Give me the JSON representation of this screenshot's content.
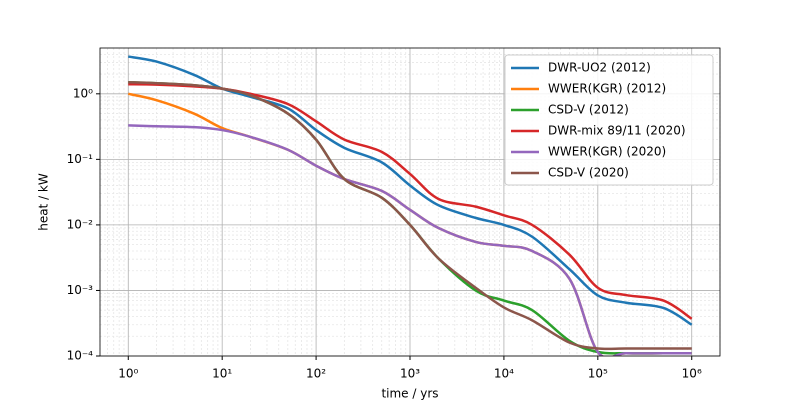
{
  "chart_data": {
    "type": "line",
    "xlabel": "time / yrs",
    "ylabel": "heat / kW",
    "x": [
      1,
      2,
      5,
      10,
      20,
      50,
      100,
      200,
      500,
      1000,
      2000,
      5000,
      10000,
      20000,
      50000,
      100000,
      200000,
      500000,
      1000000
    ],
    "series": [
      {
        "name": "DWR-UO2 (2012)",
        "color": "#1f77b4",
        "values": [
          3.7,
          3.1,
          1.95,
          1.2,
          0.9,
          0.6,
          0.28,
          0.15,
          0.09,
          0.04,
          0.02,
          0.0128,
          0.01,
          0.0066,
          0.0021,
          0.00084,
          0.00065,
          0.00054,
          0.0003
        ]
      },
      {
        "name": "WWER(KGR) (2012)",
        "color": "#ff7f0e",
        "values": [
          1.0,
          0.8,
          0.5,
          0.3,
          0.22,
          0.14,
          0.08,
          0.05,
          0.033,
          0.017,
          0.009,
          0.0055,
          0.0048,
          0.004,
          0.0015,
          0.000115,
          0.00011,
          0.00011,
          0.00011
        ]
      },
      {
        "name": "CSD-V (2012)",
        "color": "#2ca02c",
        "values": [
          1.5,
          1.45,
          1.35,
          1.2,
          0.95,
          0.5,
          0.2,
          0.05,
          0.026,
          0.01,
          0.0031,
          0.001,
          0.0007,
          0.0005,
          0.00017,
          0.000115,
          0.00011,
          0.00011,
          0.00011
        ]
      },
      {
        "name": "DWR-mix 89/11 (2020)",
        "color": "#d62728",
        "values": [
          1.4,
          1.38,
          1.3,
          1.2,
          1.0,
          0.7,
          0.38,
          0.2,
          0.13,
          0.06,
          0.025,
          0.019,
          0.014,
          0.01,
          0.0035,
          0.0011,
          0.00085,
          0.0007,
          0.00037
        ]
      },
      {
        "name": "WWER(KGR) (2020)",
        "color": "#9467bd",
        "values": [
          0.33,
          0.32,
          0.31,
          0.28,
          0.22,
          0.14,
          0.08,
          0.05,
          0.033,
          0.017,
          0.009,
          0.0055,
          0.0048,
          0.004,
          0.0015,
          0.000115,
          0.00011,
          0.00011,
          0.00011
        ]
      },
      {
        "name": "CSD-V (2020)",
        "color": "#8c564b",
        "values": [
          1.5,
          1.45,
          1.35,
          1.2,
          0.95,
          0.5,
          0.2,
          0.05,
          0.026,
          0.01,
          0.0031,
          0.0011,
          0.00055,
          0.00035,
          0.00016,
          0.00013,
          0.00013,
          0.00013,
          0.00013
        ]
      }
    ],
    "xlog": true,
    "ylog": true,
    "xlim": [
      0.5,
      2000000
    ],
    "ylim": [
      0.0001,
      5
    ],
    "xticks": [
      {
        "value": 1,
        "label": "10⁰"
      },
      {
        "value": 10,
        "label": "10¹"
      },
      {
        "value": 100,
        "label": "10²"
      },
      {
        "value": 1000,
        "label": "10³"
      },
      {
        "value": 10000,
        "label": "10⁴"
      },
      {
        "value": 100000,
        "label": "10⁵"
      },
      {
        "value": 1000000,
        "label": "10⁶"
      }
    ],
    "yticks": [
      {
        "value": 0.0001,
        "label": "10⁻⁴"
      },
      {
        "value": 0.001,
        "label": "10⁻³"
      },
      {
        "value": 0.01,
        "label": "10⁻²"
      },
      {
        "value": 0.1,
        "label": "10⁻¹"
      },
      {
        "value": 1,
        "label": "10⁰"
      }
    ],
    "grid": true,
    "minor_grid": true,
    "legend": "upper right"
  }
}
